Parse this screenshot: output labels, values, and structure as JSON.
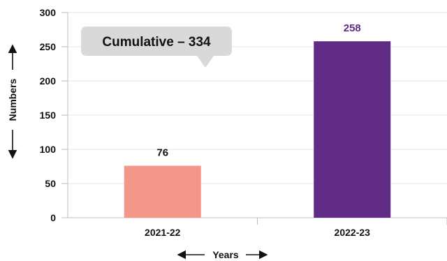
{
  "chart_data": {
    "type": "bar",
    "categories": [
      "2021-22",
      "2022-23"
    ],
    "values": [
      76,
      258
    ],
    "value_labels": [
      "76",
      "258"
    ],
    "xlabel": "Years",
    "ylabel": "Numbers",
    "ylim": [
      0,
      300
    ],
    "yticks": [
      "0",
      "50",
      "100",
      "150",
      "200",
      "250",
      "300"
    ],
    "grid": true,
    "annotation": "Cumulative – 334",
    "bar_colors": [
      "#f4968a",
      "#5f2b84"
    ],
    "value_label_colors": [
      "#111111",
      "#5f2b84"
    ]
  }
}
